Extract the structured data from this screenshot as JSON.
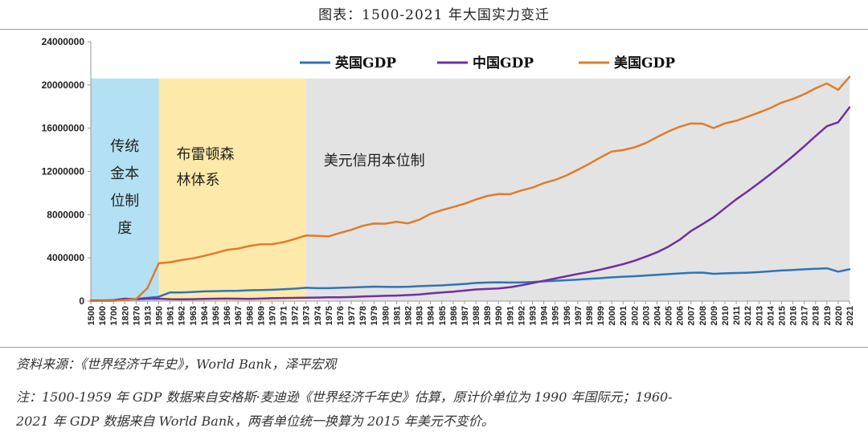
{
  "header": {
    "title": "图表：1500-2021 年大国实力变迁"
  },
  "footer": {
    "source": "资料来源：《世界经济千年史》，World Bank，泽平宏观",
    "note_line1": "注：1500-1959 年 GDP 数据来自安格斯·麦迪逊《世界经济千年史》估算，原计价单位为 1990 年国际元；1960-",
    "note_line2": "2021 年 GDP 数据来自 World Bank，两者单位统一换算为 2015 年美元不变价。"
  },
  "colors": {
    "uk": "#2e75b6",
    "china": "#7030a0",
    "usa": "#e07b2a",
    "region_gold": "#b3e0f2",
    "region_bretton": "#fde9a9",
    "region_dollar": "#e3e3e3"
  },
  "chart_data": {
    "type": "line",
    "ylim": [
      0,
      24000000
    ],
    "yticks": [
      0,
      4000000,
      8000000,
      12000000,
      16000000,
      20000000,
      24000000
    ],
    "ytick_labels": [
      "0",
      "4000000",
      "8000000",
      "12000000",
      "16000000",
      "20000000",
      "24000000"
    ],
    "grid": false,
    "legend_position": "top",
    "x": [
      "1500",
      "1600",
      "1700",
      "1820",
      "1870",
      "1913",
      "1950",
      "1961",
      "1962",
      "1963",
      "1964",
      "1965",
      "1966",
      "1967",
      "1968",
      "1969",
      "1970",
      "1971",
      "1972",
      "1973",
      "1974",
      "1975",
      "1976",
      "1977",
      "1978",
      "1979",
      "1980",
      "1981",
      "1982",
      "1983",
      "1984",
      "1985",
      "1986",
      "1987",
      "1988",
      "1989",
      "1990",
      "1991",
      "1992",
      "1993",
      "1994",
      "1995",
      "1996",
      "1997",
      "1998",
      "1999",
      "2000",
      "2001",
      "2002",
      "2003",
      "2004",
      "2005",
      "2006",
      "2007",
      "2008",
      "2009",
      "2010",
      "2011",
      "2012",
      "2013",
      "2014",
      "2015",
      "2016",
      "2017",
      "2018",
      "2019",
      "2020",
      "2021"
    ],
    "series": [
      {
        "name": "英国GDP",
        "key": "uk",
        "values": [
          20000,
          30000,
          50000,
          150000,
          200000,
          300000,
          400000,
          800000,
          800000,
          850000,
          900000,
          920000,
          940000,
          960000,
          1000000,
          1020000,
          1050000,
          1100000,
          1150000,
          1230000,
          1200000,
          1200000,
          1230000,
          1260000,
          1300000,
          1340000,
          1320000,
          1310000,
          1330000,
          1380000,
          1420000,
          1460000,
          1520000,
          1590000,
          1680000,
          1720000,
          1740000,
          1720000,
          1730000,
          1760000,
          1830000,
          1880000,
          1930000,
          1990000,
          2060000,
          2120000,
          2200000,
          2260000,
          2300000,
          2370000,
          2430000,
          2500000,
          2560000,
          2620000,
          2640000,
          2530000,
          2570000,
          2600000,
          2630000,
          2680000,
          2760000,
          2830000,
          2880000,
          2940000,
          2990000,
          3040000,
          2730000,
          2940000
        ]
      },
      {
        "name": "中国GDP",
        "key": "china",
        "values": [
          50000,
          60000,
          80000,
          220000,
          180000,
          220000,
          220000,
          180000,
          170000,
          180000,
          200000,
          220000,
          230000,
          220000,
          210000,
          230000,
          270000,
          290000,
          300000,
          320000,
          330000,
          350000,
          350000,
          380000,
          420000,
          450000,
          490000,
          510000,
          560000,
          620000,
          710000,
          800000,
          870000,
          970000,
          1080000,
          1120000,
          1170000,
          1280000,
          1460000,
          1670000,
          1880000,
          2090000,
          2300000,
          2510000,
          2700000,
          2910000,
          3160000,
          3420000,
          3730000,
          4110000,
          4520000,
          5040000,
          5680000,
          6480000,
          7110000,
          7770000,
          8600000,
          9420000,
          10150000,
          10930000,
          11730000,
          12560000,
          13410000,
          14320000,
          15270000,
          16180000,
          16550000,
          17930000
        ]
      },
      {
        "name": "美国GDP",
        "key": "usa",
        "values": [
          10000,
          15000,
          20000,
          100000,
          200000,
          1200000,
          3500000,
          3600000,
          3800000,
          3950000,
          4180000,
          4440000,
          4730000,
          4860000,
          5100000,
          5260000,
          5270000,
          5450000,
          5740000,
          6070000,
          6030000,
          5990000,
          6310000,
          6600000,
          6960000,
          7180000,
          7160000,
          7340000,
          7200000,
          7530000,
          8080000,
          8420000,
          8710000,
          9010000,
          9390000,
          9730000,
          9910000,
          9890000,
          10230000,
          10500000,
          10920000,
          11210000,
          11630000,
          12150000,
          12690000,
          13290000,
          13840000,
          13980000,
          14220000,
          14620000,
          15180000,
          15700000,
          16130000,
          16440000,
          16420000,
          16010000,
          16440000,
          16690000,
          17070000,
          17450000,
          17860000,
          18370000,
          18710000,
          19140000,
          19690000,
          20140000,
          19550000,
          20750000
        ]
      }
    ],
    "regions": [
      {
        "label_lines": [
          "传统",
          "金本",
          "位制",
          "度"
        ],
        "from": "1500",
        "to": "1950",
        "color_key": "region_gold",
        "layout": "vertical"
      },
      {
        "label_lines": [
          "布雷顿森",
          "林体系"
        ],
        "from": "1950",
        "to": "1973",
        "color_key": "region_bretton",
        "layout": "block"
      },
      {
        "label_lines": [
          "美元信用本位制"
        ],
        "from": "1973",
        "to": "2021",
        "color_key": "region_dollar",
        "layout": "line"
      }
    ]
  }
}
